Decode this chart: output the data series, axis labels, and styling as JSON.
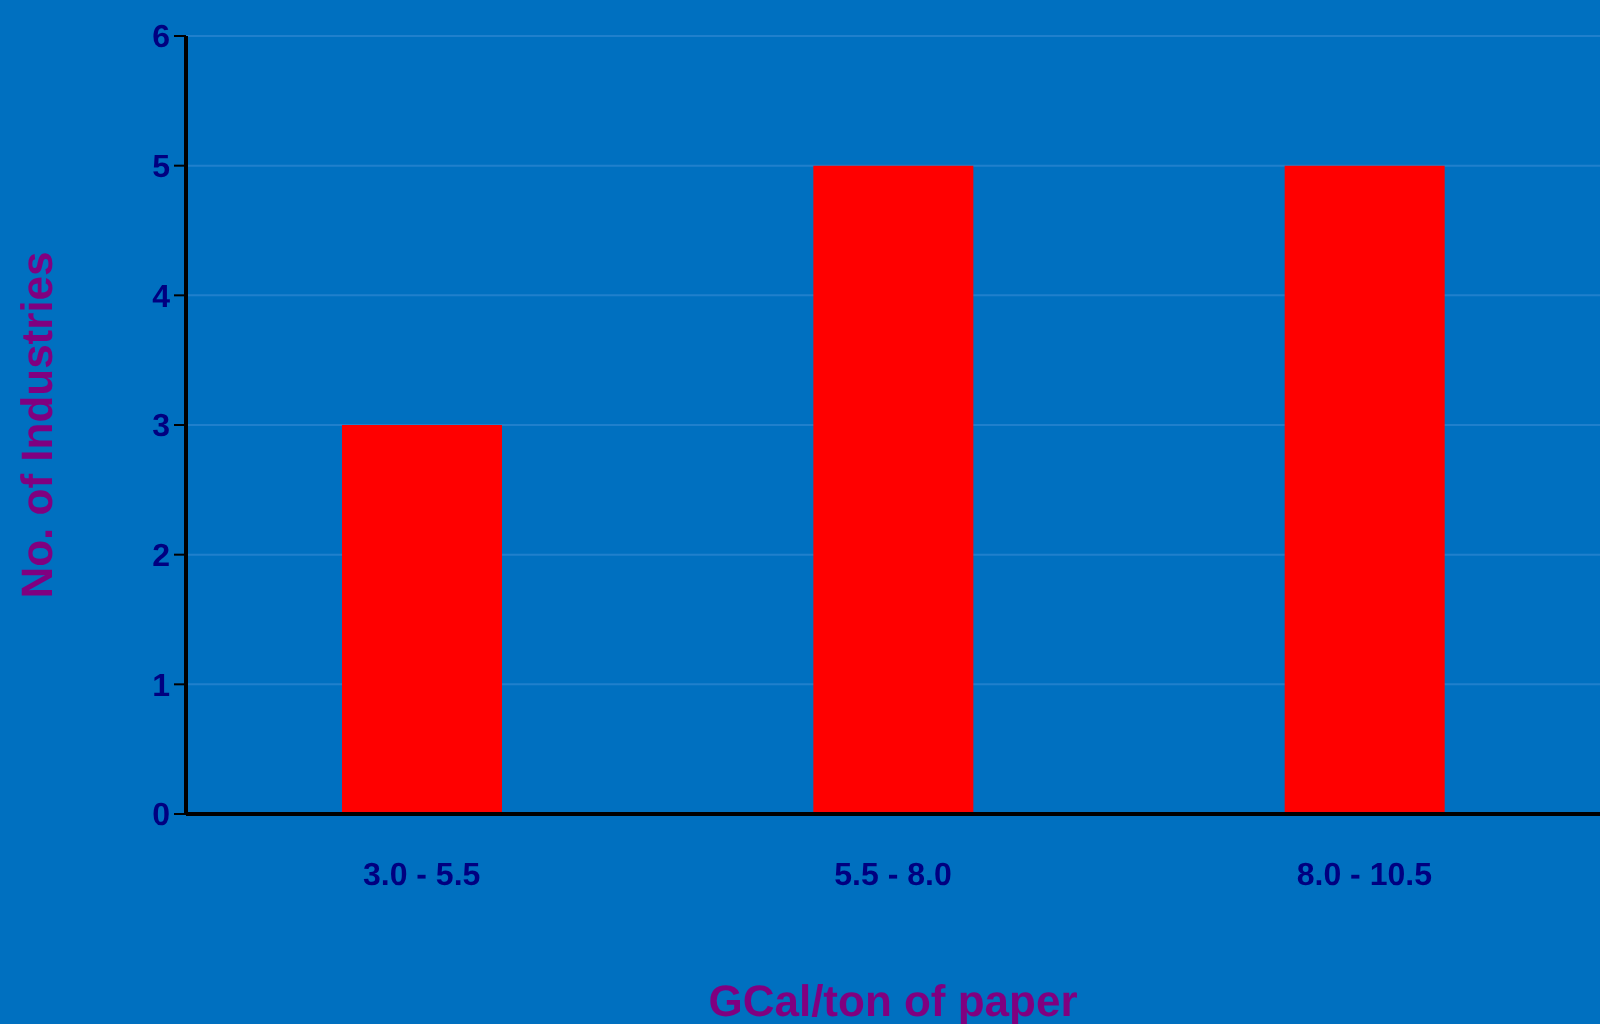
{
  "chart_data": {
    "type": "bar",
    "xlabel": "GCal/ton of paper",
    "ylabel": "No. of Industries",
    "categories": [
      "3.0 - 5.5",
      "5.5 - 8.0",
      "8.0 - 10.5"
    ],
    "values": [
      3,
      5,
      5
    ],
    "color": "#ff0000",
    "ylim": [
      0,
      6
    ],
    "yticks": [
      0,
      1,
      2,
      3,
      4,
      5,
      6
    ],
    "grid": "y"
  }
}
